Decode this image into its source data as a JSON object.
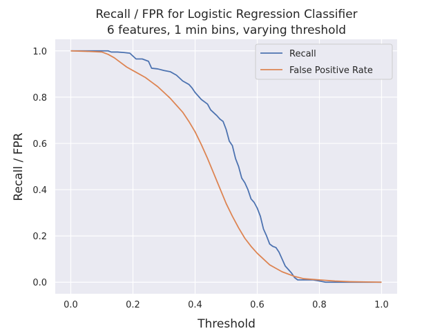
{
  "chart_data": {
    "type": "line",
    "title": "Recall / FPR for Logistic Regression Classifier",
    "subtitle": "6 features, 1 min bins, varying threshold",
    "xlabel": "Threshold",
    "ylabel": "Recall / FPR",
    "xlim": [
      -0.05,
      1.05
    ],
    "ylim": [
      -0.05,
      1.05
    ],
    "xticks": [
      "0.0",
      "0.2",
      "0.4",
      "0.6",
      "0.8",
      "1.0"
    ],
    "yticks": [
      "0.0",
      "0.2",
      "0.4",
      "0.6",
      "0.8",
      "1.0"
    ],
    "grid": true,
    "legend_position": "top-right",
    "series": [
      {
        "name": "Recall",
        "color": "#4c72b0",
        "x": [
          0.0,
          0.04,
          0.08,
          0.12,
          0.13,
          0.15,
          0.17,
          0.19,
          0.21,
          0.23,
          0.25,
          0.26,
          0.28,
          0.3,
          0.32,
          0.34,
          0.36,
          0.38,
          0.39,
          0.4,
          0.42,
          0.44,
          0.45,
          0.47,
          0.48,
          0.49,
          0.5,
          0.51,
          0.52,
          0.53,
          0.54,
          0.55,
          0.56,
          0.57,
          0.58,
          0.59,
          0.6,
          0.61,
          0.62,
          0.63,
          0.64,
          0.65,
          0.66,
          0.67,
          0.68,
          0.69,
          0.7,
          0.71,
          0.72,
          0.73,
          0.74,
          0.76,
          0.78,
          0.8,
          0.82,
          0.84,
          0.88,
          0.92,
          0.96,
          1.0
        ],
        "y": [
          1.0,
          1.0,
          1.0,
          1.0,
          0.995,
          0.995,
          0.993,
          0.99,
          0.965,
          0.965,
          0.955,
          0.925,
          0.922,
          0.915,
          0.91,
          0.895,
          0.87,
          0.855,
          0.84,
          0.82,
          0.79,
          0.77,
          0.745,
          0.72,
          0.705,
          0.695,
          0.66,
          0.61,
          0.59,
          0.535,
          0.5,
          0.45,
          0.43,
          0.4,
          0.36,
          0.345,
          0.32,
          0.285,
          0.23,
          0.2,
          0.165,
          0.155,
          0.15,
          0.13,
          0.1,
          0.07,
          0.055,
          0.04,
          0.02,
          0.01,
          0.01,
          0.01,
          0.01,
          0.005,
          0.0,
          0.0,
          0.0,
          0.0,
          0.0,
          0.0
        ]
      },
      {
        "name": "False Positive Rate",
        "color": "#dd8452",
        "x": [
          0.0,
          0.05,
          0.1,
          0.12,
          0.14,
          0.16,
          0.18,
          0.2,
          0.22,
          0.24,
          0.26,
          0.28,
          0.3,
          0.32,
          0.34,
          0.36,
          0.38,
          0.4,
          0.42,
          0.44,
          0.46,
          0.48,
          0.5,
          0.52,
          0.54,
          0.56,
          0.58,
          0.6,
          0.62,
          0.64,
          0.66,
          0.68,
          0.7,
          0.72,
          0.75,
          0.8,
          0.85,
          0.9,
          0.95,
          1.0
        ],
        "y": [
          1.0,
          0.998,
          0.995,
          0.985,
          0.97,
          0.95,
          0.93,
          0.915,
          0.9,
          0.885,
          0.865,
          0.845,
          0.82,
          0.795,
          0.765,
          0.735,
          0.695,
          0.65,
          0.595,
          0.535,
          0.47,
          0.405,
          0.34,
          0.285,
          0.235,
          0.19,
          0.155,
          0.125,
          0.1,
          0.075,
          0.06,
          0.045,
          0.035,
          0.025,
          0.015,
          0.01,
          0.005,
          0.002,
          0.001,
          0.0
        ]
      }
    ]
  }
}
